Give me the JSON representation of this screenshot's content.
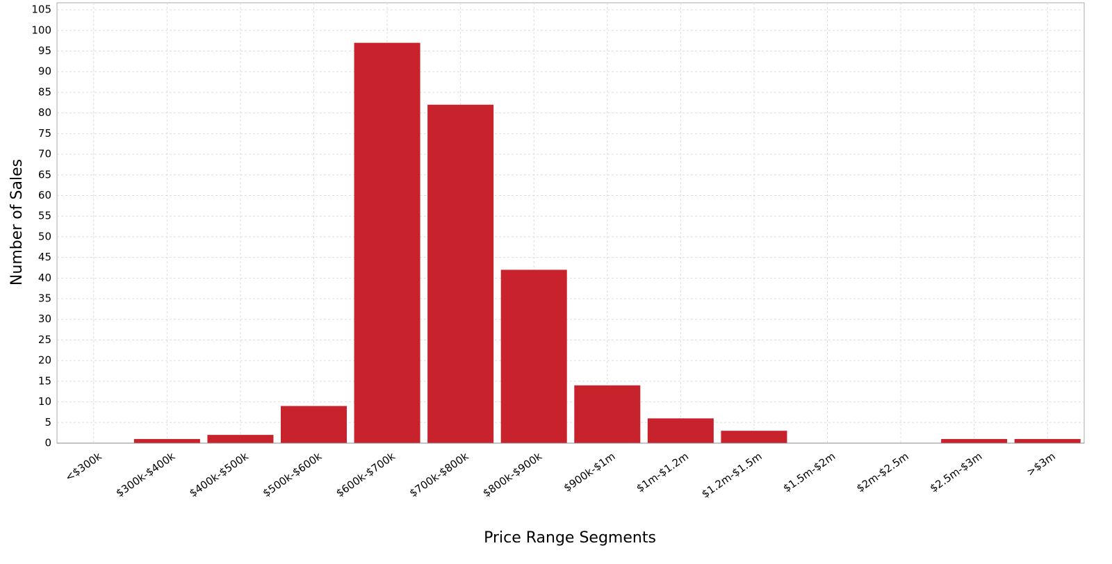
{
  "chart_data": {
    "type": "bar",
    "x_label": "Price Range Segments",
    "y_label": "Number of Sales",
    "categories": [
      "<$300k",
      "$300k-$400k",
      "$400k-$500k",
      "$500k-$600k",
      "$600k-$700k",
      "$700k-$800k",
      "$800k-$900k",
      "$900k-$1m",
      "$1m-$1.2m",
      "$1.2m-$1.5m",
      "$1.5m-$2m",
      "$2m-$2.5m",
      "$2.5m-$3m",
      ">$3m"
    ],
    "values": [
      0,
      1,
      2,
      9,
      97,
      82,
      42,
      14,
      6,
      3,
      0,
      0,
      1,
      1
    ],
    "color": "#c8232c",
    "ylim": [
      0,
      106.7
    ],
    "yticks": [
      0,
      5,
      10,
      15,
      20,
      25,
      30,
      35,
      40,
      45,
      50,
      55,
      60,
      65,
      70,
      75,
      80,
      85,
      90,
      95,
      100,
      105
    ],
    "grid": true
  }
}
